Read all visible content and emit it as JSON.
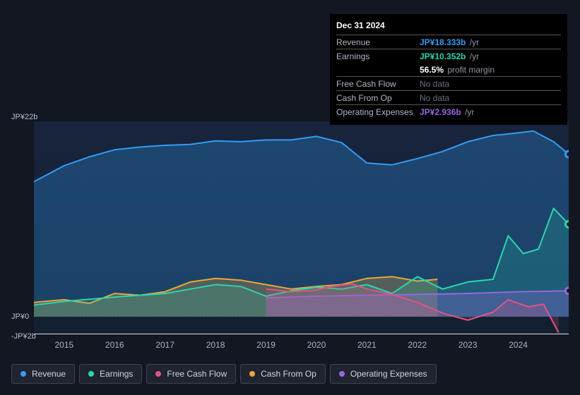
{
  "colors": {
    "bg": "#131722",
    "plot_top": "#18243d",
    "plot_bottom": "#132031",
    "axis_line": "#dfe3eb",
    "text": "#c8cdd6",
    "revenue": "#2f9df4",
    "earnings": "#2bd6af",
    "fcf": "#e05483",
    "cfo": "#e9a73a",
    "opex": "#9667e0"
  },
  "tooltip": {
    "date": "Dec 31 2024",
    "revenue": {
      "label": "Revenue",
      "value": "JP¥18.333b",
      "suffix": "/yr",
      "series": "revenue"
    },
    "earnings": {
      "label": "Earnings",
      "value": "JP¥10.352b",
      "suffix": "/yr",
      "series": "earnings"
    },
    "margin": {
      "label": "",
      "value": "56.5%",
      "suffix": "profit margin"
    },
    "fcf": {
      "label": "Free Cash Flow",
      "nodata": "No data"
    },
    "cfo": {
      "label": "Cash From Op",
      "nodata": "No data"
    },
    "opex": {
      "label": "Operating Expenses",
      "value": "JP¥2.936b",
      "suffix": "/yr",
      "series": "opex"
    }
  },
  "chart": {
    "type": "line-area",
    "y_labels": {
      "top": "JP¥22b",
      "zero": "JP¥0",
      "bottom": "-JP¥2b"
    },
    "ylim": [
      -2,
      22
    ],
    "y_zero_offset_b": 0,
    "x_years": [
      "2015",
      "2016",
      "2017",
      "2018",
      "2019",
      "2020",
      "2021",
      "2022",
      "2023",
      "2024"
    ],
    "xlim": [
      2014.4,
      2025.0
    ],
    "series": {
      "revenue": {
        "color": "#2f9df4",
        "fill_opacity": 0.28,
        "pts": [
          [
            2014.4,
            15.2
          ],
          [
            2015.0,
            17.0
          ],
          [
            2015.5,
            18.0
          ],
          [
            2016.0,
            18.8
          ],
          [
            2016.5,
            19.1
          ],
          [
            2017.0,
            19.3
          ],
          [
            2017.5,
            19.4
          ],
          [
            2018.0,
            19.8
          ],
          [
            2018.5,
            19.7
          ],
          [
            2019.0,
            19.9
          ],
          [
            2019.5,
            19.9
          ],
          [
            2020.0,
            20.3
          ],
          [
            2020.5,
            19.6
          ],
          [
            2021.0,
            17.3
          ],
          [
            2021.5,
            17.1
          ],
          [
            2022.0,
            17.8
          ],
          [
            2022.5,
            18.6
          ],
          [
            2023.0,
            19.7
          ],
          [
            2023.5,
            20.4
          ],
          [
            2024.0,
            20.7
          ],
          [
            2024.3,
            20.9
          ],
          [
            2024.7,
            19.7
          ],
          [
            2025.0,
            18.3
          ]
        ],
        "end_dot": [
          2025.0,
          18.3
        ]
      },
      "earnings": {
        "color": "#2bd6af",
        "fill_opacity": 0.18,
        "pts": [
          [
            2014.4,
            1.3
          ],
          [
            2015.0,
            1.7
          ],
          [
            2016.0,
            2.2
          ],
          [
            2017.0,
            2.6
          ],
          [
            2017.5,
            3.1
          ],
          [
            2018.0,
            3.6
          ],
          [
            2018.5,
            3.4
          ],
          [
            2019.0,
            2.3
          ],
          [
            2019.5,
            2.9
          ],
          [
            2020.0,
            3.3
          ],
          [
            2020.5,
            3.1
          ],
          [
            2021.0,
            3.6
          ],
          [
            2021.5,
            2.6
          ],
          [
            2022.0,
            4.5
          ],
          [
            2022.5,
            3.1
          ],
          [
            2023.0,
            3.9
          ],
          [
            2023.5,
            4.2
          ],
          [
            2023.8,
            9.1
          ],
          [
            2024.1,
            7.1
          ],
          [
            2024.4,
            7.6
          ],
          [
            2024.7,
            12.2
          ],
          [
            2025.0,
            10.4
          ]
        ],
        "end_dot": [
          2025.0,
          10.4
        ]
      },
      "cfo": {
        "color": "#e9a73a",
        "fill_opacity": 0.28,
        "pts": [
          [
            2014.4,
            1.6
          ],
          [
            2015.0,
            1.9
          ],
          [
            2015.5,
            1.5
          ],
          [
            2016.0,
            2.6
          ],
          [
            2016.5,
            2.4
          ],
          [
            2017.0,
            2.8
          ],
          [
            2017.5,
            3.9
          ],
          [
            2018.0,
            4.3
          ],
          [
            2018.5,
            4.1
          ],
          [
            2019.0,
            3.6
          ],
          [
            2019.5,
            3.1
          ],
          [
            2020.0,
            3.4
          ],
          [
            2020.5,
            3.6
          ],
          [
            2021.0,
            4.3
          ],
          [
            2021.5,
            4.5
          ],
          [
            2022.0,
            4.0
          ],
          [
            2022.4,
            4.2
          ]
        ]
      },
      "fcf": {
        "color": "#e05483",
        "fill_opacity": 0.22,
        "pts": [
          [
            2019.0,
            3.1
          ],
          [
            2019.5,
            2.8
          ],
          [
            2020.0,
            3.0
          ],
          [
            2020.3,
            3.4
          ],
          [
            2020.7,
            3.7
          ],
          [
            2021.0,
            3.1
          ],
          [
            2021.5,
            2.5
          ],
          [
            2022.0,
            1.6
          ],
          [
            2022.5,
            0.4
          ],
          [
            2023.0,
            -0.4
          ],
          [
            2023.5,
            0.5
          ],
          [
            2023.8,
            1.9
          ],
          [
            2024.2,
            1.1
          ],
          [
            2024.5,
            1.4
          ],
          [
            2024.8,
            -1.8
          ]
        ]
      },
      "opex": {
        "color": "#9667e0",
        "fill_opacity": 0.3,
        "pts": [
          [
            2019.0,
            2.1
          ],
          [
            2020.0,
            2.3
          ],
          [
            2021.0,
            2.4
          ],
          [
            2022.0,
            2.5
          ],
          [
            2023.0,
            2.6
          ],
          [
            2024.0,
            2.8
          ],
          [
            2025.0,
            2.9
          ]
        ],
        "end_dot": [
          2025.0,
          2.9
        ]
      }
    }
  },
  "legend": [
    {
      "key": "revenue",
      "label": "Revenue",
      "color": "#2f9df4"
    },
    {
      "key": "earnings",
      "label": "Earnings",
      "color": "#2bd6af"
    },
    {
      "key": "fcf",
      "label": "Free Cash Flow",
      "color": "#e05483"
    },
    {
      "key": "cfo",
      "label": "Cash From Op",
      "color": "#e9a73a"
    },
    {
      "key": "opex",
      "label": "Operating Expenses",
      "color": "#9667e0"
    }
  ]
}
